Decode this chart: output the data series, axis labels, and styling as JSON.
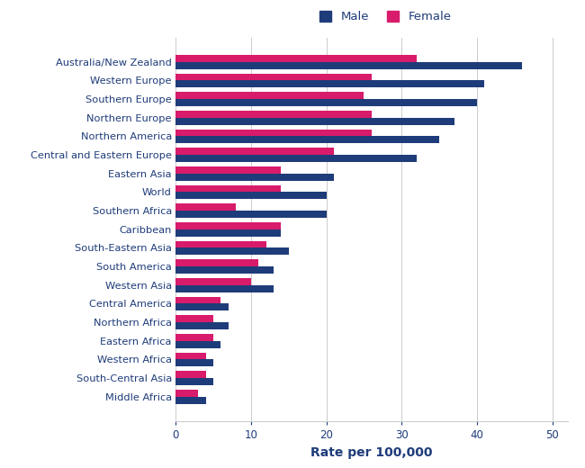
{
  "categories": [
    "Australia/New Zealand",
    "Western Europe",
    "Southern Europe",
    "Northern Europe",
    "Northern America",
    "Central and Eastern Europe",
    "Eastern Asia",
    "World",
    "Southern Africa",
    "Caribbean",
    "South-Eastern Asia",
    "South America",
    "Western Asia",
    "Central America",
    "Northern Africa",
    "Eastern Africa",
    "Western Africa",
    "South-Central Asia",
    "Middle Africa"
  ],
  "male": [
    46,
    41,
    40,
    37,
    35,
    32,
    21,
    20,
    20,
    14,
    15,
    13,
    13,
    7,
    7,
    6,
    5,
    5,
    4
  ],
  "female": [
    32,
    26,
    25,
    26,
    26,
    21,
    14,
    14,
    8,
    14,
    12,
    11,
    10,
    6,
    5,
    5,
    4,
    4,
    3
  ],
  "male_color": "#1f3c7a",
  "female_color": "#d81b6a",
  "xlabel": "Rate per 100,000",
  "legend_male": "Male",
  "legend_female": "Female",
  "xlim": [
    0,
    52
  ],
  "xticks": [
    0,
    10,
    20,
    30,
    40,
    50
  ],
  "background_color": "#ffffff",
  "grid_color": "#cccccc",
  "label_color": "#1f3c7a",
  "xlabel_color": "#1f3c7a",
  "label_fontsize": 8.2,
  "bar_height": 0.38
}
